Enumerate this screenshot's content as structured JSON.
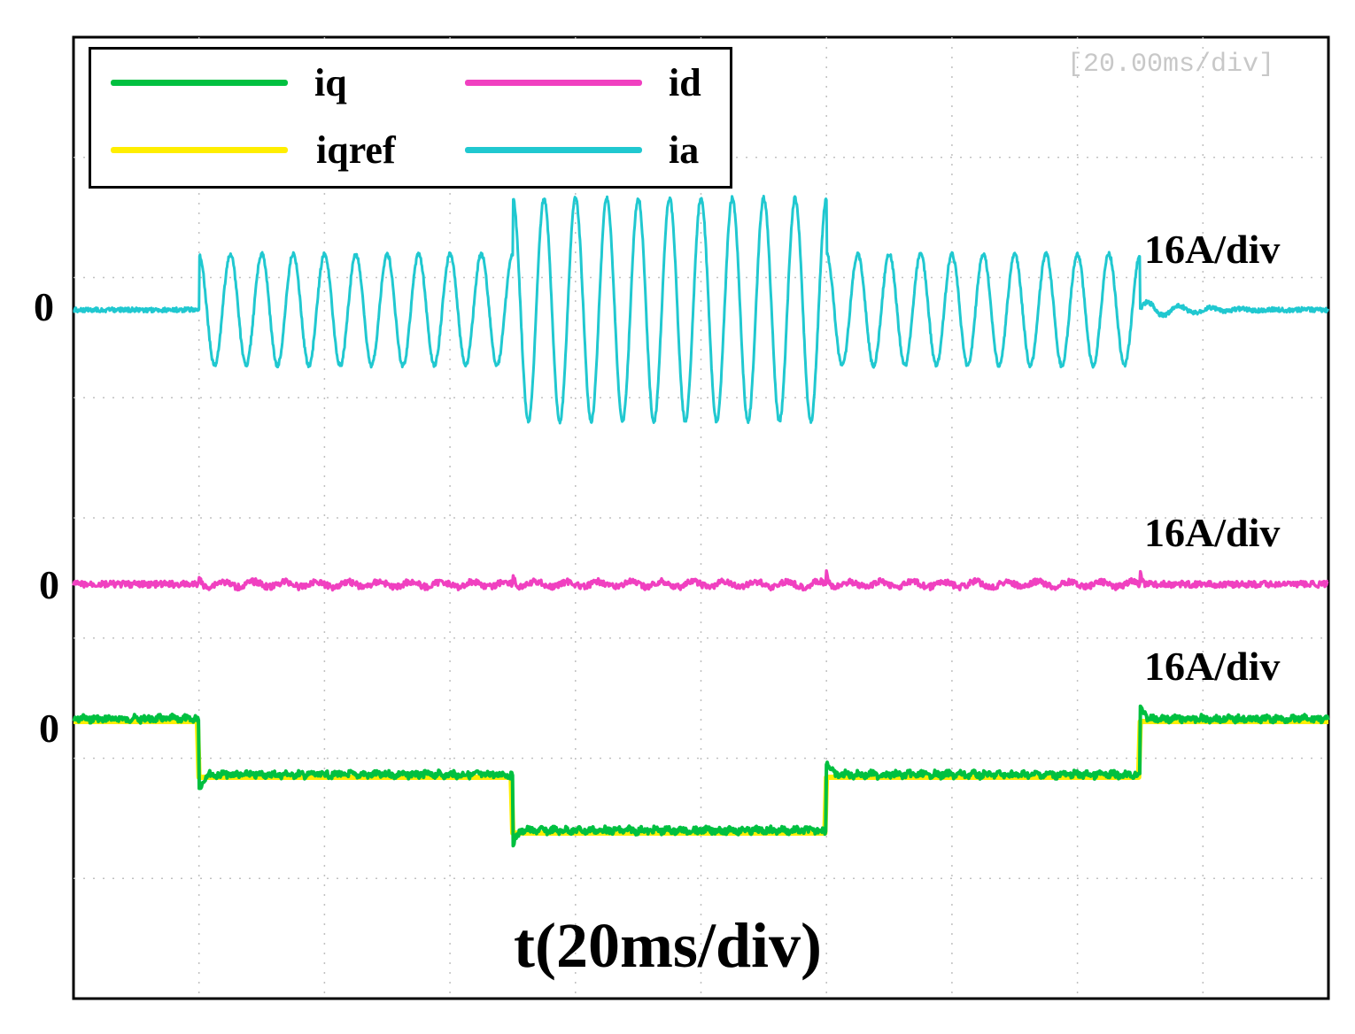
{
  "chart_data": {
    "type": "line",
    "timebase_label": "[20.00ms/div]",
    "xlabel": "t(20ms/div)",
    "legend": [
      {
        "name": "iq",
        "color": "#00c040"
      },
      {
        "name": "id",
        "color": "#f040c0"
      },
      {
        "name": "iqref",
        "color": "#ffee00"
      },
      {
        "name": "ia",
        "color": "#20c8d0"
      }
    ],
    "channels": [
      {
        "name": "ia",
        "zero_label": "0",
        "scale_label": "16A/div",
        "color": "#20c8d0"
      },
      {
        "name": "id",
        "zero_label": "0",
        "scale_label": "16A/div",
        "color": "#f040c0"
      },
      {
        "name": "iq",
        "zero_label": "0",
        "scale_label": "16A/div",
        "color": "#00c040"
      }
    ],
    "x_divisions": 10,
    "y_divisions": 8,
    "segments_ms": [
      0,
      20,
      70,
      120,
      170,
      200
    ],
    "series": [
      {
        "name": "iqref",
        "unit": "A",
        "x_ms": [
          0,
          20,
          20,
          70,
          70,
          120,
          120,
          170,
          170,
          200
        ],
        "values": [
          0,
          -9,
          -9,
          -9,
          -18,
          -18,
          -9,
          -9,
          0,
          0
        ]
      },
      {
        "name": "iq",
        "unit": "A",
        "x_ms": [
          0,
          20,
          20,
          70,
          70,
          120,
          120,
          170,
          170,
          200
        ],
        "values": [
          0,
          -9,
          -9,
          -9,
          -18,
          -18,
          -9,
          -9,
          0,
          0
        ]
      },
      {
        "name": "id",
        "unit": "A",
        "x_ms": [
          0,
          200
        ],
        "values": [
          0,
          0
        ]
      },
      {
        "name": "ia",
        "unit": "A",
        "amplitude_per_segment": [
          0,
          9,
          18,
          9,
          0
        ],
        "cycles_per_segment": [
          0,
          10,
          10,
          10,
          0
        ]
      }
    ],
    "grid": true
  }
}
